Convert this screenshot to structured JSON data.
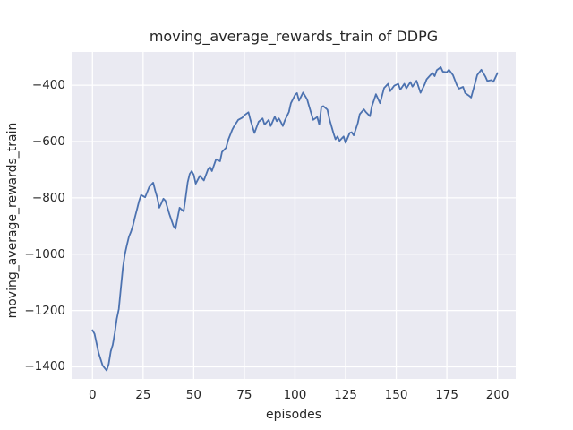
{
  "title": "moving_average_rewards_train of DDPG",
  "xlabel": "episodes",
  "ylabel": "moving_average_rewards_train",
  "colors": {
    "figure_background": "#ffffff",
    "axes_background": "#eaeaf2",
    "gridline": "#ffffff",
    "line": "#4c72b0",
    "text": "#262626"
  },
  "chart_data": {
    "type": "line",
    "title": "moving_average_rewards_train of DDPG",
    "xlabel": "episodes",
    "ylabel": "moving_average_rewards_train",
    "grid": true,
    "legend_position": "none",
    "xlim": [
      -10.3,
      209
    ],
    "ylim": [
      -1443,
      -282
    ],
    "xticks": {
      "values": [
        0,
        25,
        50,
        75,
        100,
        125,
        150,
        175,
        200
      ],
      "labels": [
        "0",
        "25",
        "50",
        "75",
        "100",
        "125",
        "150",
        "175",
        "200"
      ]
    },
    "yticks": {
      "values": [
        -400,
        -600,
        -800,
        -1000,
        -1200,
        -1400
      ],
      "labels": [
        "−400",
        "−600",
        "−800",
        "−1000",
        "−1200",
        "−1400"
      ]
    },
    "series": [
      {
        "name": "moving_average_rewards_train",
        "color": "#4c72b0",
        "x": [
          0,
          1,
          3,
          5,
          7,
          8,
          9,
          10,
          11,
          12,
          13,
          14,
          15,
          16,
          17,
          18,
          19,
          20,
          21,
          22,
          23,
          24,
          26,
          28,
          30,
          31,
          32,
          33,
          34,
          35,
          36,
          38,
          40,
          41,
          42,
          43,
          45,
          46,
          47,
          48,
          49,
          50,
          51,
          53,
          55,
          57,
          58,
          59,
          61,
          63,
          64,
          66,
          67,
          69,
          70,
          72,
          74,
          75,
          77,
          78,
          80,
          82,
          84,
          85,
          87,
          88,
          90,
          91,
          92,
          93,
          94,
          95,
          97,
          98,
          100,
          101,
          102,
          104,
          106,
          107,
          108,
          109,
          111,
          112,
          113,
          114,
          116,
          117,
          119,
          120,
          121,
          122,
          124,
          125,
          127,
          128,
          129,
          131,
          132,
          134,
          135,
          137,
          138,
          139,
          140,
          142,
          144,
          146,
          147,
          149,
          151,
          152,
          154,
          155,
          157,
          158,
          160,
          162,
          164,
          165,
          167,
          168,
          169,
          170,
          172,
          173,
          175,
          176,
          178,
          180,
          181,
          183,
          184,
          186,
          187,
          189,
          190,
          192,
          194,
          195,
          197,
          198,
          200
        ],
        "y": [
          -1270,
          -1283,
          -1350,
          -1395,
          -1413,
          -1390,
          -1345,
          -1322,
          -1280,
          -1230,
          -1195,
          -1120,
          -1050,
          -1000,
          -968,
          -938,
          -920,
          -898,
          -868,
          -840,
          -812,
          -790,
          -798,
          -762,
          -746,
          -775,
          -800,
          -835,
          -820,
          -803,
          -810,
          -858,
          -900,
          -910,
          -872,
          -835,
          -848,
          -800,
          -745,
          -715,
          -705,
          -718,
          -750,
          -722,
          -738,
          -700,
          -690,
          -705,
          -663,
          -670,
          -637,
          -622,
          -595,
          -558,
          -545,
          -523,
          -515,
          -507,
          -496,
          -523,
          -570,
          -530,
          -518,
          -540,
          -523,
          -545,
          -512,
          -528,
          -518,
          -530,
          -545,
          -525,
          -495,
          -464,
          -435,
          -428,
          -455,
          -426,
          -450,
          -475,
          -500,
          -523,
          -513,
          -540,
          -478,
          -474,
          -487,
          -520,
          -570,
          -592,
          -582,
          -598,
          -582,
          -605,
          -570,
          -567,
          -578,
          -535,
          -503,
          -486,
          -495,
          -510,
          -474,
          -453,
          -432,
          -464,
          -410,
          -395,
          -421,
          -402,
          -395,
          -416,
          -395,
          -411,
          -389,
          -405,
          -384,
          -427,
          -398,
          -379,
          -363,
          -357,
          -368,
          -347,
          -336,
          -352,
          -354,
          -345,
          -364,
          -401,
          -412,
          -406,
          -428,
          -438,
          -444,
          -391,
          -364,
          -345,
          -369,
          -385,
          -382,
          -388,
          -357
        ]
      }
    ]
  }
}
